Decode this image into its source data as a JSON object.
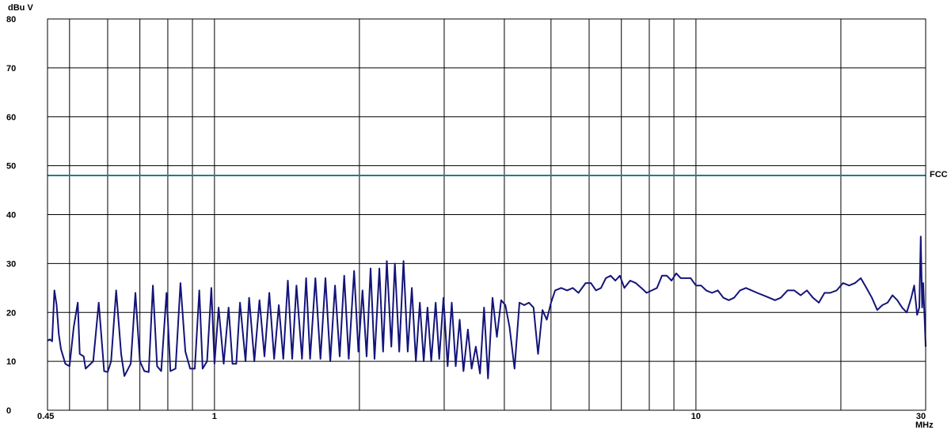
{
  "chart_data": {
    "type": "line",
    "title": "",
    "xlabel": "MHz",
    "ylabel": "dBu V",
    "x_scale": "log",
    "xlim": [
      0.45,
      30
    ],
    "ylim": [
      0,
      80
    ],
    "grid": true,
    "x_ticks": [
      0.45,
      1,
      10,
      30
    ],
    "x_tick_labels": [
      "0.45",
      "1",
      "10",
      "30"
    ],
    "x_gridlines": [
      0.5,
      0.6,
      0.7,
      0.8,
      0.9,
      1,
      2,
      3,
      4,
      5,
      6,
      7,
      8,
      9,
      10,
      20,
      30
    ],
    "y_ticks": [
      0,
      10,
      20,
      30,
      40,
      50,
      60,
      70,
      80
    ],
    "y_tick_labels": [
      "0",
      "10",
      "20",
      "30",
      "40",
      "50",
      "60",
      "70",
      "80"
    ],
    "colors": {
      "measurement": "#14147a",
      "limit": "#1f8080",
      "grid": "#000000"
    },
    "limit_line": {
      "name": "FCC",
      "value": 48
    },
    "series": [
      {
        "values": [
          [
            0.45,
            14.2
          ],
          [
            0.455,
            14.5
          ],
          [
            0.46,
            14.1
          ],
          [
            0.465,
            24.5
          ],
          [
            0.47,
            21.5
          ],
          [
            0.475,
            15.5
          ],
          [
            0.48,
            12.5
          ],
          [
            0.49,
            9.5
          ],
          [
            0.5,
            9.0
          ],
          [
            0.51,
            17.0
          ],
          [
            0.52,
            22.0
          ],
          [
            0.525,
            11.5
          ],
          [
            0.535,
            11.0
          ],
          [
            0.54,
            8.5
          ],
          [
            0.56,
            10.0
          ],
          [
            0.575,
            22.0
          ],
          [
            0.59,
            8.0
          ],
          [
            0.6,
            7.8
          ],
          [
            0.61,
            10.0
          ],
          [
            0.625,
            24.5
          ],
          [
            0.64,
            11.5
          ],
          [
            0.65,
            7.0
          ],
          [
            0.67,
            9.5
          ],
          [
            0.685,
            24.0
          ],
          [
            0.7,
            10.0
          ],
          [
            0.715,
            8.0
          ],
          [
            0.73,
            7.8
          ],
          [
            0.745,
            25.5
          ],
          [
            0.76,
            9.0
          ],
          [
            0.775,
            8.0
          ],
          [
            0.795,
            24.0
          ],
          [
            0.81,
            8.0
          ],
          [
            0.83,
            8.5
          ],
          [
            0.85,
            26.0
          ],
          [
            0.87,
            12.0
          ],
          [
            0.89,
            8.5
          ],
          [
            0.91,
            8.5
          ],
          [
            0.93,
            24.5
          ],
          [
            0.945,
            8.5
          ],
          [
            0.965,
            10.0
          ],
          [
            0.985,
            25.0
          ],
          [
            1.0,
            9.5
          ],
          [
            1.02,
            21.0
          ],
          [
            1.045,
            9.5
          ],
          [
            1.07,
            21.0
          ],
          [
            1.09,
            9.5
          ],
          [
            1.11,
            9.5
          ],
          [
            1.13,
            22.0
          ],
          [
            1.16,
            10.0
          ],
          [
            1.18,
            23.0
          ],
          [
            1.21,
            10.0
          ],
          [
            1.24,
            22.5
          ],
          [
            1.27,
            11.0
          ],
          [
            1.3,
            24.0
          ],
          [
            1.33,
            10.5
          ],
          [
            1.36,
            21.5
          ],
          [
            1.39,
            10.5
          ],
          [
            1.42,
            26.5
          ],
          [
            1.45,
            10.5
          ],
          [
            1.48,
            25.5
          ],
          [
            1.52,
            10.5
          ],
          [
            1.55,
            27.0
          ],
          [
            1.58,
            10.5
          ],
          [
            1.62,
            27.0
          ],
          [
            1.66,
            10.5
          ],
          [
            1.7,
            27.0
          ],
          [
            1.74,
            10.0
          ],
          [
            1.78,
            25.5
          ],
          [
            1.82,
            11.0
          ],
          [
            1.86,
            27.5
          ],
          [
            1.9,
            10.5
          ],
          [
            1.95,
            28.5
          ],
          [
            1.99,
            12.0
          ],
          [
            2.03,
            24.5
          ],
          [
            2.07,
            11.0
          ],
          [
            2.11,
            29.0
          ],
          [
            2.15,
            10.5
          ],
          [
            2.2,
            29.0
          ],
          [
            2.24,
            12.0
          ],
          [
            2.28,
            30.5
          ],
          [
            2.33,
            13.0
          ],
          [
            2.37,
            30.0
          ],
          [
            2.42,
            12.0
          ],
          [
            2.47,
            30.5
          ],
          [
            2.52,
            12.0
          ],
          [
            2.57,
            25.0
          ],
          [
            2.62,
            10.0
          ],
          [
            2.67,
            22.0
          ],
          [
            2.72,
            10.0
          ],
          [
            2.77,
            21.0
          ],
          [
            2.82,
            10.0
          ],
          [
            2.88,
            22.0
          ],
          [
            2.93,
            10.5
          ],
          [
            2.99,
            23.0
          ],
          [
            3.05,
            9.0
          ],
          [
            3.11,
            22.0
          ],
          [
            3.17,
            9.0
          ],
          [
            3.23,
            18.5
          ],
          [
            3.29,
            8.0
          ],
          [
            3.36,
            16.5
          ],
          [
            3.42,
            8.5
          ],
          [
            3.49,
            13.0
          ],
          [
            3.56,
            7.5
          ],
          [
            3.63,
            21.0
          ],
          [
            3.7,
            6.5
          ],
          [
            3.78,
            23.0
          ],
          [
            3.86,
            15.0
          ],
          [
            3.94,
            22.5
          ],
          [
            4.02,
            21.5
          ],
          [
            4.1,
            17.0
          ],
          [
            4.2,
            8.5
          ],
          [
            4.3,
            22.0
          ],
          [
            4.4,
            21.5
          ],
          [
            4.5,
            22.0
          ],
          [
            4.6,
            21.0
          ],
          [
            4.7,
            11.5
          ],
          [
            4.8,
            20.5
          ],
          [
            4.9,
            18.5
          ],
          [
            5.0,
            22.0
          ],
          [
            5.1,
            24.5
          ],
          [
            5.25,
            25.0
          ],
          [
            5.4,
            24.5
          ],
          [
            5.55,
            25.0
          ],
          [
            5.7,
            24.0
          ],
          [
            5.9,
            26.0
          ],
          [
            6.05,
            26.0
          ],
          [
            6.2,
            24.5
          ],
          [
            6.35,
            25.0
          ],
          [
            6.5,
            27.0
          ],
          [
            6.65,
            27.5
          ],
          [
            6.8,
            26.5
          ],
          [
            6.95,
            27.5
          ],
          [
            7.1,
            25.0
          ],
          [
            7.3,
            26.5
          ],
          [
            7.5,
            26.0
          ],
          [
            7.7,
            25.0
          ],
          [
            7.9,
            24.0
          ],
          [
            8.1,
            24.5
          ],
          [
            8.3,
            25.0
          ],
          [
            8.5,
            27.5
          ],
          [
            8.7,
            27.5
          ],
          [
            8.9,
            26.5
          ],
          [
            9.1,
            28.0
          ],
          [
            9.3,
            27.0
          ],
          [
            9.5,
            27.0
          ],
          [
            9.75,
            27.0
          ],
          [
            10.0,
            25.5
          ],
          [
            10.25,
            25.5
          ],
          [
            10.5,
            24.5
          ],
          [
            10.8,
            24.0
          ],
          [
            11.1,
            24.5
          ],
          [
            11.4,
            23.0
          ],
          [
            11.7,
            22.5
          ],
          [
            12.0,
            23.0
          ],
          [
            12.35,
            24.5
          ],
          [
            12.7,
            25.0
          ],
          [
            13.05,
            24.5
          ],
          [
            13.4,
            24.0
          ],
          [
            13.8,
            23.5
          ],
          [
            14.2,
            23.0
          ],
          [
            14.6,
            22.5
          ],
          [
            15.0,
            23.0
          ],
          [
            15.5,
            24.5
          ],
          [
            16.0,
            24.5
          ],
          [
            16.5,
            23.5
          ],
          [
            17.0,
            24.5
          ],
          [
            17.5,
            23.0
          ],
          [
            18.0,
            22.0
          ],
          [
            18.5,
            24.0
          ],
          [
            19.0,
            24.0
          ],
          [
            19.6,
            24.5
          ],
          [
            20.2,
            26.0
          ],
          [
            20.8,
            25.5
          ],
          [
            21.4,
            26.0
          ],
          [
            22.0,
            27.0
          ],
          [
            22.6,
            25.0
          ],
          [
            23.2,
            23.0
          ],
          [
            23.8,
            20.5
          ],
          [
            24.4,
            21.5
          ],
          [
            25.0,
            22.0
          ],
          [
            25.6,
            23.5
          ],
          [
            26.2,
            22.5
          ],
          [
            26.8,
            21.0
          ],
          [
            27.4,
            20.0
          ],
          [
            28.0,
            23.0
          ],
          [
            28.4,
            25.5
          ],
          [
            28.8,
            19.5
          ],
          [
            29.1,
            21.0
          ],
          [
            29.3,
            35.5
          ],
          [
            29.5,
            21.0
          ],
          [
            29.65,
            26.0
          ],
          [
            29.8,
            20.5
          ],
          [
            29.9,
            17.0
          ],
          [
            30.0,
            13.0
          ]
        ]
      }
    ]
  }
}
